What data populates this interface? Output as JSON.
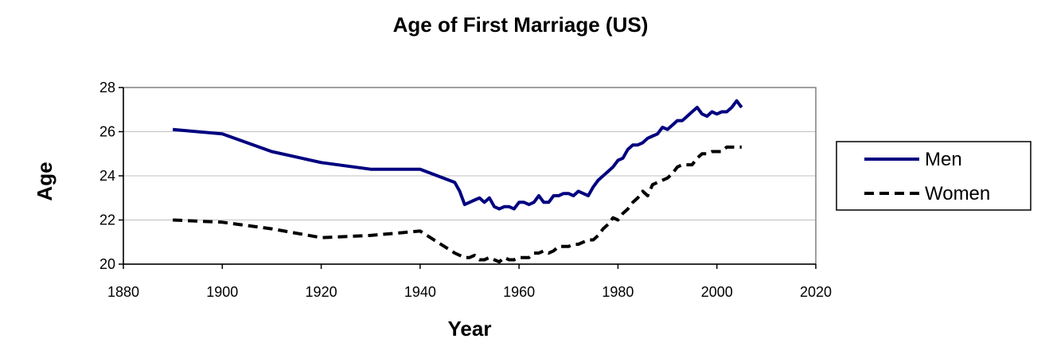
{
  "chart_data": {
    "type": "line",
    "title": "Age of First Marriage (US)",
    "xlabel": "Year",
    "ylabel": "Age",
    "xlim": [
      1880,
      2020
    ],
    "ylim": [
      20,
      28
    ],
    "x_ticks": [
      "1880",
      "1900",
      "1920",
      "1940",
      "1960",
      "1980",
      "2000",
      "2020"
    ],
    "y_ticks": [
      "20",
      "22",
      "24",
      "26",
      "28"
    ],
    "grid": "horizontal",
    "legend": "right",
    "colors": {
      "men": "#000080",
      "women": "#000000",
      "grid": "#c0c0c0",
      "plot_border": "#808080",
      "legend_border": "#000000"
    },
    "series": [
      {
        "name": "Men",
        "style": "solid",
        "x": [
          1890,
          1900,
          1910,
          1920,
          1930,
          1940,
          1947,
          1948,
          1949,
          1950,
          1951,
          1952,
          1953,
          1954,
          1955,
          1956,
          1957,
          1958,
          1959,
          1960,
          1961,
          1962,
          1963,
          1964,
          1965,
          1966,
          1967,
          1968,
          1969,
          1970,
          1971,
          1972,
          1973,
          1974,
          1975,
          1976,
          1977,
          1978,
          1979,
          1980,
          1981,
          1982,
          1983,
          1984,
          1985,
          1986,
          1987,
          1988,
          1989,
          1990,
          1991,
          1992,
          1993,
          1994,
          1995,
          1996,
          1997,
          1998,
          1999,
          2000,
          2001,
          2002,
          2003,
          2004,
          2005
        ],
        "values": [
          26.1,
          25.9,
          25.1,
          24.6,
          24.3,
          24.3,
          23.7,
          23.3,
          22.7,
          22.8,
          22.9,
          23.0,
          22.8,
          23.0,
          22.6,
          22.5,
          22.6,
          22.6,
          22.5,
          22.8,
          22.8,
          22.7,
          22.8,
          23.1,
          22.8,
          22.8,
          23.1,
          23.1,
          23.2,
          23.2,
          23.1,
          23.3,
          23.2,
          23.1,
          23.5,
          23.8,
          24.0,
          24.2,
          24.4,
          24.7,
          24.8,
          25.2,
          25.4,
          25.4,
          25.5,
          25.7,
          25.8,
          25.9,
          26.2,
          26.1,
          26.3,
          26.5,
          26.5,
          26.7,
          26.9,
          27.1,
          26.8,
          26.7,
          26.9,
          26.8,
          26.9,
          26.9,
          27.1,
          27.4,
          27.1
        ]
      },
      {
        "name": "Women",
        "style": "dashed",
        "x": [
          1890,
          1900,
          1910,
          1920,
          1930,
          1940,
          1947,
          1948,
          1949,
          1950,
          1951,
          1952,
          1953,
          1954,
          1955,
          1956,
          1957,
          1958,
          1959,
          1960,
          1961,
          1962,
          1963,
          1964,
          1965,
          1966,
          1967,
          1968,
          1969,
          1970,
          1971,
          1972,
          1973,
          1974,
          1975,
          1976,
          1977,
          1978,
          1979,
          1980,
          1981,
          1982,
          1983,
          1984,
          1985,
          1986,
          1987,
          1988,
          1989,
          1990,
          1991,
          1992,
          1993,
          1994,
          1995,
          1996,
          1997,
          1998,
          1999,
          2000,
          2001,
          2002,
          2003,
          2004,
          2005
        ],
        "values": [
          22.0,
          21.9,
          21.6,
          21.2,
          21.3,
          21.5,
          20.5,
          20.4,
          20.3,
          20.3,
          20.4,
          20.2,
          20.2,
          20.3,
          20.2,
          20.1,
          20.3,
          20.2,
          20.2,
          20.3,
          20.3,
          20.3,
          20.5,
          20.5,
          20.6,
          20.5,
          20.6,
          20.8,
          20.8,
          20.8,
          20.9,
          20.9,
          21.0,
          21.1,
          21.1,
          21.3,
          21.6,
          21.8,
          22.1,
          22.0,
          22.3,
          22.5,
          22.8,
          23.0,
          23.3,
          23.1,
          23.6,
          23.7,
          23.8,
          23.9,
          24.1,
          24.4,
          24.5,
          24.5,
          24.5,
          24.8,
          25.0,
          25.0,
          25.1,
          25.1,
          25.1,
          25.3,
          25.3,
          25.3,
          25.3
        ]
      }
    ]
  }
}
